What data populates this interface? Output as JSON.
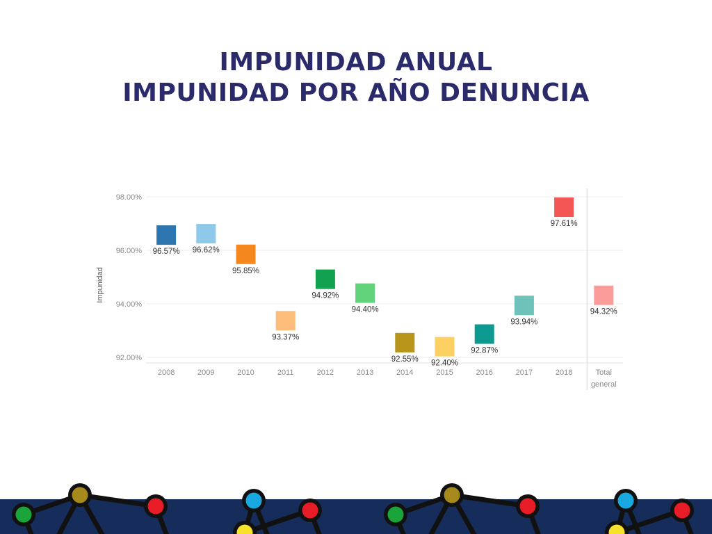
{
  "slide": {
    "title_line1": "IMPUNIDAD ANUAL",
    "title_line2": "IMPUNIDAD POR AÑO DENUNCIA"
  },
  "chart_data": {
    "type": "scatter",
    "ylabel": "Impunidad",
    "xlabel": "",
    "ylim": [
      91.7,
      98.3
    ],
    "yticks": [
      92,
      94,
      96,
      98
    ],
    "ytick_labels": [
      "92.00%",
      "94.00%",
      "96.00%",
      "98.00%"
    ],
    "grid": true,
    "categories": [
      "2008",
      "2009",
      "2010",
      "2011",
      "2012",
      "2013",
      "2014",
      "2015",
      "2016",
      "2017",
      "2018",
      "Total general"
    ],
    "values": [
      96.57,
      96.62,
      95.85,
      93.37,
      94.92,
      94.4,
      92.55,
      92.4,
      92.87,
      93.94,
      97.61,
      94.32
    ],
    "value_labels": [
      "96.57%",
      "96.62%",
      "95.85%",
      "93.37%",
      "94.92%",
      "94.40%",
      "92.55%",
      "92.40%",
      "92.87%",
      "93.94%",
      "97.61%",
      "94.32%"
    ],
    "colors": [
      "#2e76b0",
      "#8ec9ea",
      "#f5871f",
      "#fbbd79",
      "#12a24f",
      "#62d37a",
      "#b8961b",
      "#fcd062",
      "#0c9a90",
      "#6ec2ba",
      "#f45656",
      "#fa9d9a"
    ]
  },
  "footer": {
    "band_color": "#162d5c",
    "node_colors": [
      "#1aa43a",
      "#a68a1c",
      "#e81c26",
      "#1aa8e0",
      "#f6e22a"
    ]
  }
}
